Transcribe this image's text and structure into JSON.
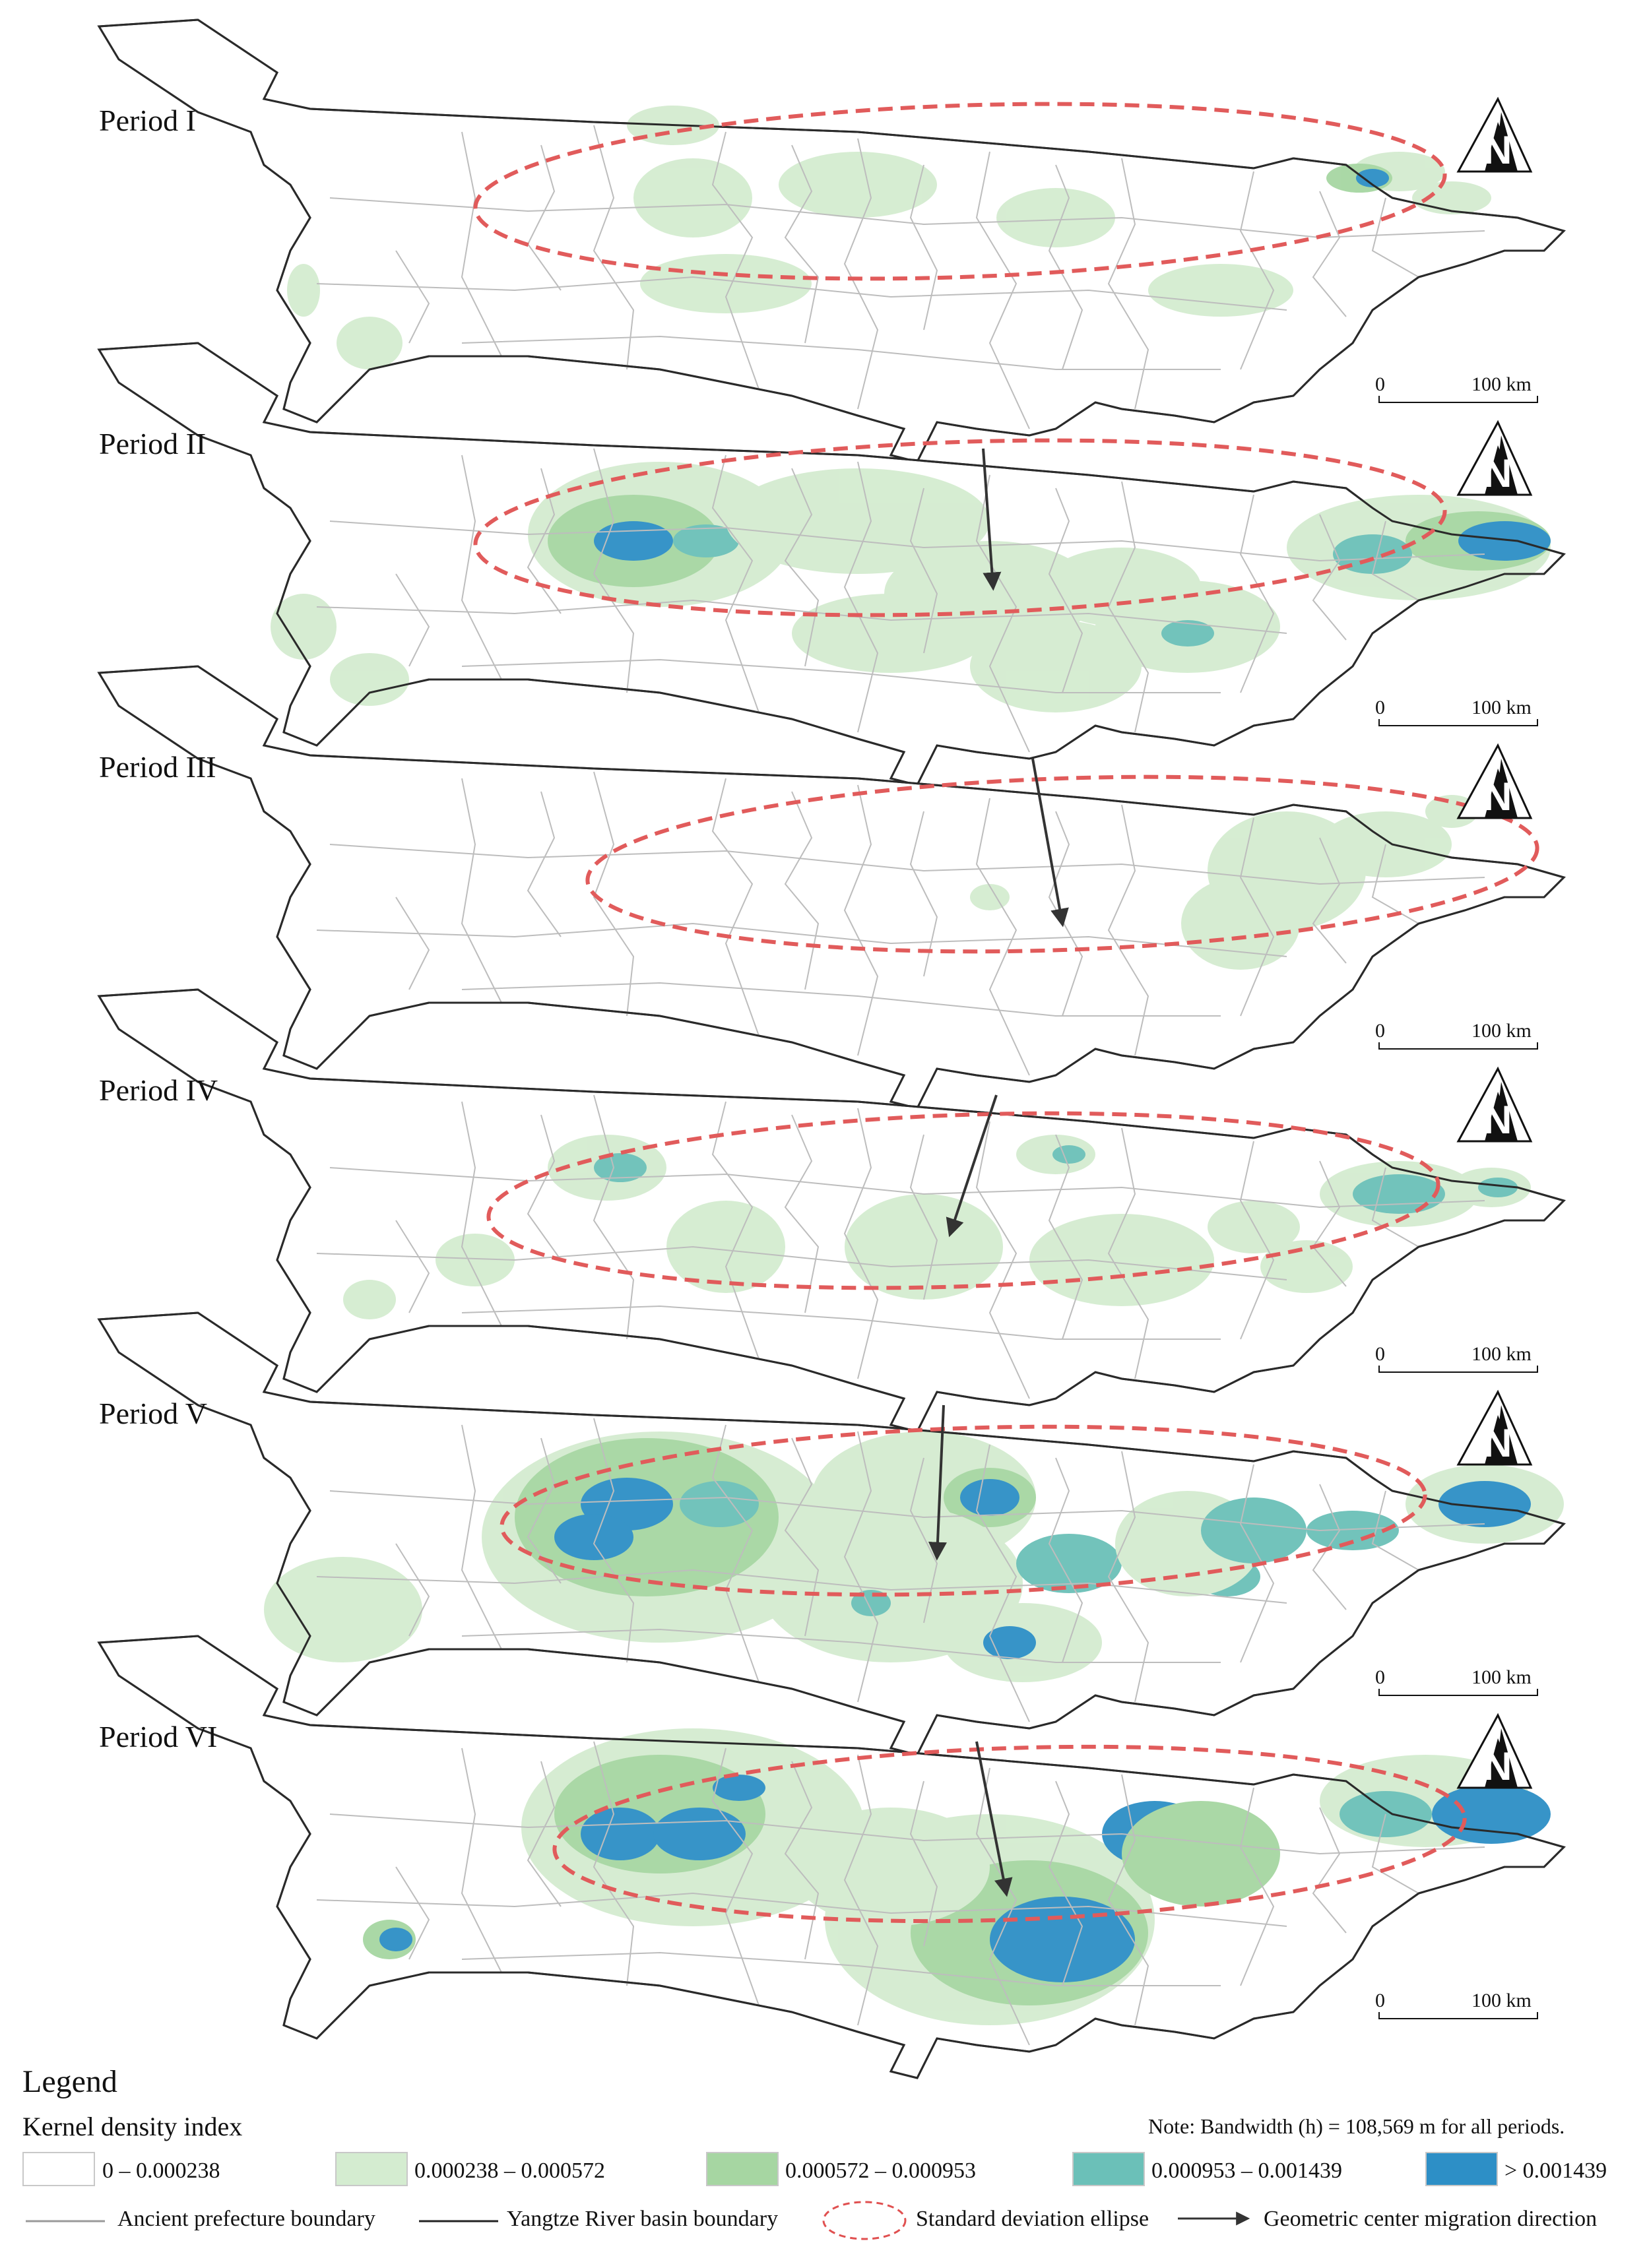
{
  "periods": [
    {
      "label": "Period I"
    },
    {
      "label": "Period II"
    },
    {
      "label": "Period III"
    },
    {
      "label": "Period IV"
    },
    {
      "label": "Period V"
    },
    {
      "label": "Period VI"
    }
  ],
  "scale_bar": {
    "zero": "0",
    "distance": "100 km"
  },
  "north_arrow": {
    "letter": "N"
  },
  "legend": {
    "title": "Legend",
    "subtitle": "Kernel density index",
    "note": "Note: Bandwidth (h) = 108,569 m for all periods.",
    "classes": [
      {
        "label": "0 – 0.000238",
        "color": "#ffffff"
      },
      {
        "label": "0.000238 – 0.000572",
        "color": "#d4ecd0"
      },
      {
        "label": "0.000572 – 0.000953",
        "color": "#a6d6a2"
      },
      {
        "label": "0.000953 – 0.001439",
        "color": "#6bc0b8"
      },
      {
        "label": "> 0.001439",
        "color": "#2d8fc6"
      }
    ],
    "lines": [
      {
        "label": "Ancient  prefecture boundary",
        "color": "#9a9a9a"
      },
      {
        "label": "Yangtze River basin boundary",
        "color": "#222222"
      },
      {
        "label": "Standard deviation ellipse",
        "color": "#e05050"
      },
      {
        "label": "Geometric center migration direction",
        "color": "#333333"
      }
    ]
  },
  "colors": {
    "basin_fill": "#ffffff",
    "basin_stroke": "#2a2a2a",
    "prefecture_stroke": "#bdbdbd",
    "ellipse": "#e15b5b",
    "arrow": "#333333"
  }
}
